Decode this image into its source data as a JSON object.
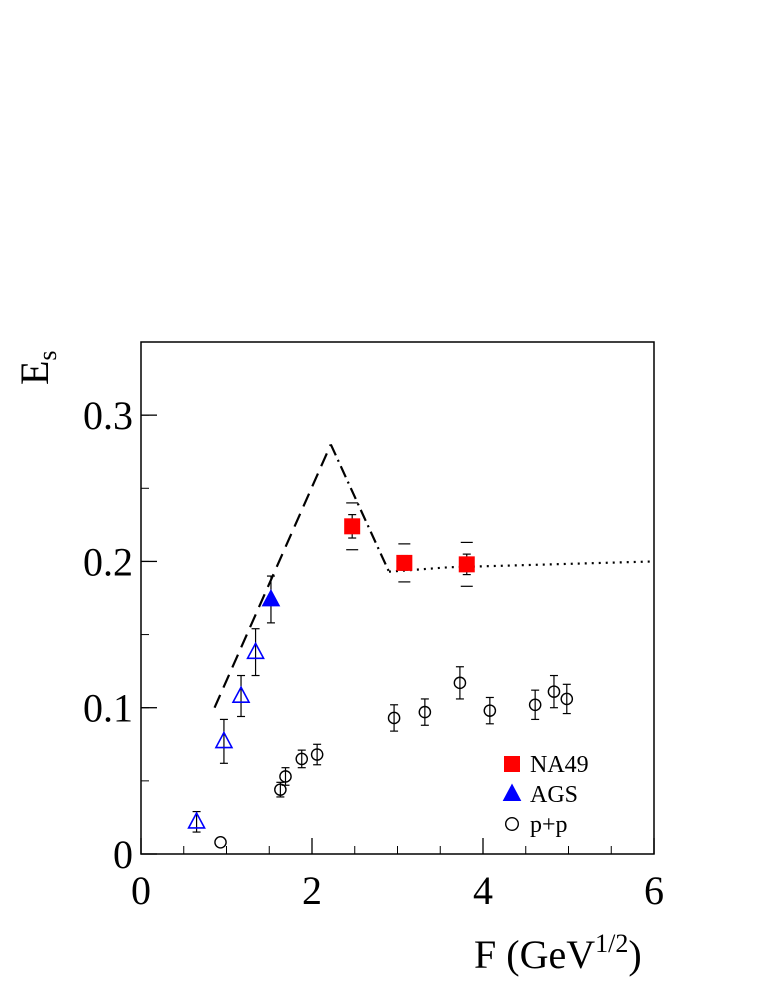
{
  "chart_data": {
    "type": "scatter",
    "xlabel_main": "F (GeV",
    "xlabel_sup": "1/2",
    "xlabel_close": ")",
    "ylabel_main": "E",
    "ylabel_sub": "s",
    "xlim": [
      0,
      6
    ],
    "ylim": [
      0,
      0.35
    ],
    "xticks": [
      0,
      2,
      4,
      6
    ],
    "xtick_labels": [
      "0",
      "2",
      "4",
      "6"
    ],
    "yticks": [
      0,
      0.1,
      0.2,
      0.3
    ],
    "ytick_labels": [
      "0",
      "0.1",
      "0.2",
      "0.3"
    ],
    "x_minor_step": 0.5,
    "y_minor_step": 0.05,
    "grid": false,
    "legend_position": "bottom-right",
    "series": [
      {
        "name": "NA49",
        "marker": "filled-square",
        "color": "#ff0000",
        "points": [
          {
            "x": 2.47,
            "y": 0.224,
            "err": 0.008,
            "syst": 0.016
          },
          {
            "x": 3.08,
            "y": 0.199,
            "err": 0.005,
            "syst": 0.013
          },
          {
            "x": 3.81,
            "y": 0.198,
            "err": 0.007,
            "syst": 0.015
          }
        ]
      },
      {
        "name": "AGS",
        "marker": "filled-triangle",
        "color": "#0000ff",
        "points": [
          {
            "x": 1.52,
            "y": 0.174,
            "err": 0.016
          }
        ]
      },
      {
        "name": "",
        "marker": "open-triangle",
        "color": "#0000ff",
        "points": [
          {
            "x": 0.65,
            "y": 0.022,
            "err": 0.007
          },
          {
            "x": 0.97,
            "y": 0.077,
            "err": 0.015
          },
          {
            "x": 1.17,
            "y": 0.108,
            "err": 0.014
          },
          {
            "x": 1.34,
            "y": 0.138,
            "err": 0.016
          }
        ]
      },
      {
        "name": "p+p",
        "marker": "open-circle",
        "color": "#000000",
        "points": [
          {
            "x": 0.93,
            "y": 0.008,
            "err": 0
          },
          {
            "x": 1.63,
            "y": 0.044,
            "err": 0.005
          },
          {
            "x": 1.69,
            "y": 0.053,
            "err": 0.006
          },
          {
            "x": 1.88,
            "y": 0.065,
            "err": 0.006
          },
          {
            "x": 2.06,
            "y": 0.068,
            "err": 0.007
          },
          {
            "x": 2.96,
            "y": 0.093,
            "err": 0.009
          },
          {
            "x": 3.32,
            "y": 0.097,
            "err": 0.009
          },
          {
            "x": 3.73,
            "y": 0.117,
            "err": 0.011
          },
          {
            "x": 4.08,
            "y": 0.098,
            "err": 0.009
          },
          {
            "x": 4.61,
            "y": 0.102,
            "err": 0.01
          },
          {
            "x": 4.83,
            "y": 0.111,
            "err": 0.011
          },
          {
            "x": 4.98,
            "y": 0.106,
            "err": 0.01
          }
        ]
      }
    ],
    "lines": [
      {
        "style": "dashed",
        "points": [
          [
            0.86,
            0.1
          ],
          [
            2.22,
            0.28
          ]
        ]
      },
      {
        "style": "dash-dot",
        "points": [
          [
            2.22,
            0.28
          ],
          [
            2.9,
            0.193
          ]
        ]
      },
      {
        "style": "dotted",
        "points": [
          [
            2.9,
            0.193
          ],
          [
            3.6,
            0.196
          ],
          [
            6.0,
            0.2
          ]
        ]
      }
    ]
  }
}
